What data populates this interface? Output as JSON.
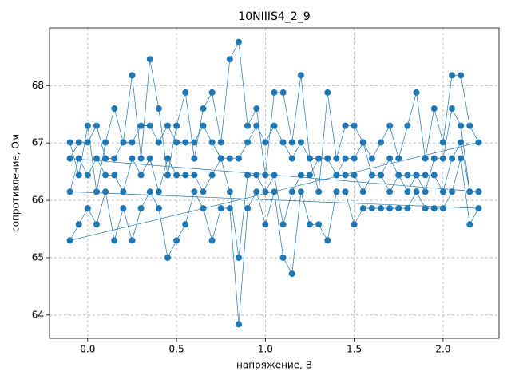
{
  "chart_data": {
    "type": "line",
    "title": "10NIIIS4_2_9",
    "xlabel": "напряжение, В",
    "ylabel": "сопротивление, Ом",
    "xlim": [
      -0.215,
      2.315
    ],
    "ylim": [
      63.594,
      69.006
    ],
    "xticks": [
      {
        "value": 0,
        "label": "0.0"
      },
      0.5,
      {
        "value": 1,
        "label": "1.0"
      },
      1.5,
      {
        "value": 2,
        "label": "2.0"
      }
    ],
    "yticks": [
      64,
      65,
      66,
      67,
      68
    ],
    "grid": true,
    "series": [
      {
        "color": "#1f77b4",
        "x": [
          -0.1,
          -0.05,
          0,
          0.05,
          0.1,
          0.15,
          0.2,
          0.25,
          0.3,
          0.35,
          0.4,
          0.45,
          0.5,
          0.55,
          0.6,
          0.65,
          0.7,
          0.75,
          0.8,
          0.85,
          0.9,
          0.95,
          1.0,
          1.05,
          1.1,
          1.15,
          1.2,
          1.25,
          1.3,
          1.35,
          1.4,
          1.45,
          1.5,
          1.55,
          1.6,
          1.65,
          1.7,
          1.75,
          1.8,
          1.85,
          1.9,
          1.95,
          2.0,
          2.05,
          2.1,
          2.15,
          2.2,
          -0.1,
          -0.05,
          0,
          0.05,
          0.1,
          0.15,
          0.2,
          0.25,
          0.3,
          0.35,
          0.4,
          0.45,
          0.5,
          0.55,
          0.6,
          0.65,
          0.7,
          0.75,
          0.8,
          0.85,
          0.9,
          0.95,
          1.0,
          1.05,
          1.1,
          1.15,
          1.2,
          1.25,
          1.3,
          1.35,
          1.4,
          1.45,
          1.5,
          1.55,
          1.6,
          1.65,
          1.7,
          1.75,
          1.8,
          1.85,
          1.9,
          1.95,
          2.0,
          2.05,
          2.1,
          2.15,
          2.2,
          -0.1,
          -0.05,
          0,
          0.05,
          0.1,
          0.15,
          0.2,
          0.25,
          0.3,
          0.35,
          0.4,
          0.45,
          0.5,
          0.55,
          0.6,
          0.65,
          0.7,
          0.75,
          0.8,
          0.85,
          0.9,
          0.95,
          1.0,
          1.05,
          1.1,
          1.15,
          1.2,
          1.25,
          1.3,
          1.35,
          1.4,
          1.45,
          1.5,
          1.55,
          1.6,
          1.65,
          1.7,
          1.75,
          1.8,
          1.85,
          1.9,
          1.95,
          2.0,
          2.05,
          2.1,
          2.15,
          2.2,
          -0.1,
          -0.05,
          0,
          0.05,
          0.1,
          0.15,
          0.2,
          0.25,
          0.3,
          0.35,
          0.4,
          0.45,
          0.5,
          0.55,
          0.6,
          0.65,
          0.7,
          0.75,
          0.8,
          0.85,
          0.9,
          0.95,
          1.0,
          1.05,
          1.1,
          1.15,
          1.2,
          1.25,
          1.3,
          1.35,
          1.4,
          1.45,
          1.5,
          1.55,
          1.6,
          1.65,
          1.7,
          1.75,
          1.8,
          1.85,
          1.9,
          1.95,
          2.0,
          2.05,
          2.1,
          2.15,
          2.2
        ],
        "values": [
          67.01,
          66.44,
          67.3,
          66.15,
          67.01,
          67.6,
          67.01,
          68.18,
          66.73,
          68.46,
          67.6,
          66.44,
          67.3,
          67.88,
          66.73,
          67.6,
          67.88,
          67.01,
          68.46,
          68.76,
          67.3,
          67.6,
          66.44,
          67.88,
          67.88,
          67.01,
          68.18,
          66.73,
          66.15,
          67.88,
          66.73,
          67.3,
          67.3,
          67.01,
          66.73,
          67.01,
          67.3,
          66.73,
          67.3,
          67.88,
          66.73,
          67.6,
          67.01,
          68.18,
          68.18,
          67.3,
          67.01,
          65.3,
          65.58,
          65.86,
          65.58,
          66.15,
          65.3,
          65.86,
          65.3,
          65.86,
          66.15,
          65.86,
          65.0,
          65.3,
          65.58,
          66.15,
          65.86,
          65.3,
          65.86,
          65.86,
          63.84,
          65.86,
          66.15,
          65.58,
          66.15,
          65.0,
          64.72,
          66.15,
          65.58,
          65.58,
          65.3,
          66.15,
          66.15,
          65.58,
          65.86,
          65.86,
          65.86,
          65.86,
          65.86,
          65.86,
          66.15,
          65.86,
          65.86,
          65.86,
          66.15,
          66.73,
          65.58,
          65.86,
          66.15,
          66.73,
          66.44,
          66.73,
          66.44,
          66.44,
          66.15,
          66.73,
          66.44,
          66.73,
          66.15,
          66.73,
          66.44,
          66.44,
          66.44,
          66.15,
          66.44,
          66.73,
          66.15,
          65.0,
          66.44,
          66.44,
          66.15,
          66.44,
          65.58,
          66.15,
          66.44,
          66.44,
          66.73,
          66.73,
          66.44,
          66.44,
          66.44,
          66.15,
          66.44,
          66.44,
          66.15,
          66.44,
          66.44,
          66.44,
          66.44,
          66.44,
          66.15,
          66.73,
          67.01,
          66.15,
          66.15,
          66.73,
          67.01,
          67.01,
          67.3,
          66.73,
          66.73,
          67.01,
          67.01,
          67.3,
          67.3,
          67.01,
          67.3,
          67.01,
          67.01,
          67.01,
          67.3,
          67.01,
          66.73,
          66.73,
          66.73,
          67.01,
          67.3,
          67.01,
          67.3,
          67.01,
          66.73,
          67.01,
          66.73,
          66.73,
          66.73,
          66.44,
          66.73,
          66.73,
          67.01,
          66.44,
          66.44,
          66.73,
          66.44,
          66.15,
          66.44,
          66.15,
          66.73,
          66.73,
          67.6,
          67.3,
          66.15,
          66.15
        ]
      }
    ]
  }
}
